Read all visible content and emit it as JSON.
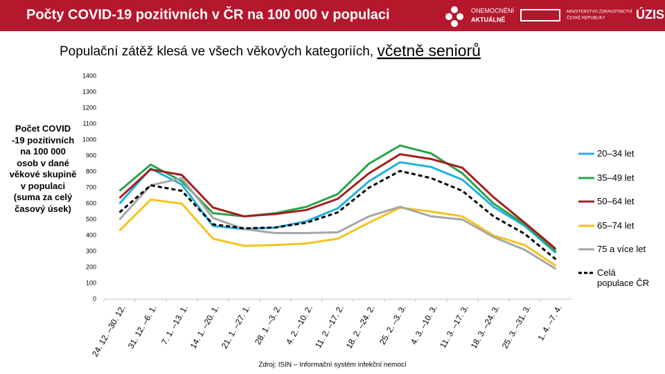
{
  "header": {
    "title": "Počty COVID-19 pozitivních v ČR na 100 000 v populaci",
    "logo1_top": "ONEMOCNĚNÍ",
    "logo1_bottom": "AKTUÁLNĚ",
    "logo2_top": "MINISTERSTVO ZDRAVOTNICTVÍ",
    "logo2_bottom": "ČESKÉ REPUBLIKY",
    "logo3": "ÚZIS"
  },
  "chart_data": {
    "type": "line",
    "title": "Populační zátěž klesá ve všech věkových kategoriích, ",
    "title_emphasis": "včetně seniorů",
    "y_label": "Počet COVID -19 pozitivních na 100 000 osob v dané věkové skupině v populaci (suma za celý časový úsek)",
    "source": "Zdroj: ISIN – Informační systém infekční nemocí",
    "categories": [
      "24. 12. –30. 12.",
      "31. 12. –6. 1.",
      "7. 1. –13. 1.",
      "14. 1. –20. 1.",
      "21. 1. –27. 1.",
      "28. 1. –3. 2.",
      "4. 2. –10. 2.",
      "11. 2. –17. 2.",
      "18. 2. –24. 2.",
      "25. 2. –3. 3.",
      "4. 3. –10. 3.",
      "11. 3. –17. 3.",
      "18. 3. –24. 3.",
      "25. 3. –31. 3.",
      "1. 4. –7. 4."
    ],
    "series": [
      {
        "name": "20–34 let",
        "color": "#1fb0e0",
        "values": [
          600,
          820,
          720,
          460,
          440,
          450,
          490,
          570,
          740,
          860,
          830,
          750,
          580,
          460,
          290
        ]
      },
      {
        "name": "35–49 let",
        "color": "#27a34a",
        "values": [
          680,
          845,
          740,
          540,
          520,
          540,
          580,
          660,
          850,
          965,
          915,
          790,
          600,
          470,
          300
        ]
      },
      {
        "name": "50–64 let",
        "color": "#a51c1c",
        "values": [
          635,
          815,
          780,
          575,
          520,
          535,
          560,
          630,
          790,
          910,
          880,
          825,
          640,
          480,
          315
        ]
      },
      {
        "name": "65–74 let",
        "color": "#f5c21b",
        "values": [
          430,
          625,
          600,
          380,
          335,
          340,
          350,
          380,
          480,
          575,
          550,
          520,
          400,
          340,
          210
        ]
      },
      {
        "name": "75 a více let",
        "color": "#a6a6a6",
        "values": [
          500,
          715,
          760,
          510,
          440,
          415,
          415,
          420,
          520,
          580,
          520,
          500,
          390,
          310,
          190
        ]
      },
      {
        "name": "Celá populace ČR",
        "color": "#000000",
        "dashed": true,
        "values": [
          545,
          715,
          680,
          470,
          445,
          450,
          480,
          545,
          700,
          805,
          760,
          680,
          520,
          410,
          250
        ]
      }
    ],
    "ylim": [
      0,
      1400
    ],
    "yticks": [
      0,
      100,
      200,
      300,
      400,
      500,
      600,
      700,
      800,
      900,
      1000,
      1100,
      1200,
      1300,
      1400
    ],
    "grid": false
  }
}
